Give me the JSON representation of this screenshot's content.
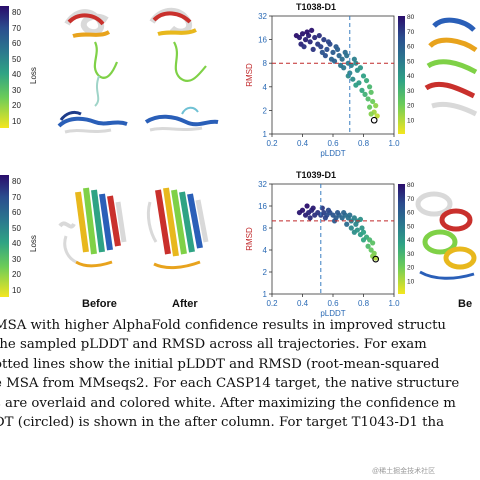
{
  "colorbar": {
    "label": "Loss",
    "ticks": [
      "80",
      "70",
      "60",
      "50",
      "40",
      "30",
      "20",
      "10"
    ]
  },
  "panels": {
    "top_title": "T1038-D1",
    "bottom_title": "T1039-D1",
    "xlabel": "pLDDT",
    "ylabel": "RMSD",
    "x_ticks": [
      "0.2",
      "0.4",
      "0.6",
      "0.8",
      "1.0"
    ],
    "y_ticks": [
      "32",
      "16",
      "8",
      "4",
      "2",
      "1"
    ]
  },
  "labels": {
    "before": "Before",
    "after": "After",
    "right_partial": "Be"
  },
  "caption_lines": [
    "MSA with higher AlphaFold confidence results in improved structu",
    " the sampled pLDDT and RMSD across all trajectories.  For exam",
    "otted lines show the initial pLDDT and RMSD (root-mean-squared",
    "e MSA from MMseqs2. For each CASP14 target, the native structure",
    "s are overlaid and colored white.  After maximizing the confidence m",
    "DT (circled) is shown in the after column.  For target T1043-D1 tha"
  ],
  "watermark": "@稀土掘金技术社区",
  "chart_data": [
    {
      "type": "scatter",
      "title": "T1038-D1",
      "xlabel": "pLDDT",
      "ylabel": "RMSD",
      "xlim": [
        0.2,
        1.0
      ],
      "ylim": [
        1,
        32
      ],
      "y_scale": "log2",
      "colorbar": {
        "label": "Loss",
        "range": [
          0,
          80
        ]
      },
      "initial_pLDDT": 0.71,
      "initial_RMSD": 8,
      "circled_point": {
        "x": 0.87,
        "y": 1.5
      },
      "points": [
        [
          0.36,
          18,
          80
        ],
        [
          0.38,
          17,
          78
        ],
        [
          0.4,
          19,
          79
        ],
        [
          0.42,
          16,
          76
        ],
        [
          0.44,
          18,
          77
        ],
        [
          0.39,
          14,
          75
        ],
        [
          0.45,
          15,
          74
        ],
        [
          0.48,
          17,
          74
        ],
        [
          0.5,
          14,
          70
        ],
        [
          0.47,
          12,
          71
        ],
        [
          0.52,
          13,
          68
        ],
        [
          0.54,
          16,
          69
        ],
        [
          0.56,
          12,
          65
        ],
        [
          0.58,
          14,
          66
        ],
        [
          0.55,
          10,
          64
        ],
        [
          0.6,
          11,
          60
        ],
        [
          0.62,
          13,
          61
        ],
        [
          0.64,
          10,
          57
        ],
        [
          0.61,
          8.5,
          58
        ],
        [
          0.66,
          9,
          54
        ],
        [
          0.68,
          11,
          55
        ],
        [
          0.7,
          8,
          50
        ],
        [
          0.67,
          7,
          51
        ],
        [
          0.72,
          7.5,
          47
        ],
        [
          0.74,
          9,
          48
        ],
        [
          0.71,
          6,
          46
        ],
        [
          0.76,
          6.5,
          42
        ],
        [
          0.78,
          7,
          40
        ],
        [
          0.73,
          5,
          43
        ],
        [
          0.8,
          5.5,
          36
        ],
        [
          0.77,
          4.5,
          38
        ],
        [
          0.82,
          4.8,
          32
        ],
        [
          0.84,
          4,
          28
        ],
        [
          0.79,
          3.6,
          33
        ],
        [
          0.81,
          3.2,
          30
        ],
        [
          0.85,
          3.4,
          24
        ],
        [
          0.83,
          2.8,
          26
        ],
        [
          0.86,
          2.6,
          20
        ],
        [
          0.84,
          2.2,
          22
        ],
        [
          0.88,
          2.3,
          15
        ],
        [
          0.87,
          1.9,
          12
        ],
        [
          0.85,
          1.8,
          16
        ],
        [
          0.89,
          1.7,
          8
        ],
        [
          0.43,
          20,
          80
        ],
        [
          0.46,
          21,
          79
        ],
        [
          0.51,
          18,
          73
        ],
        [
          0.57,
          15,
          67
        ],
        [
          0.63,
          12,
          59
        ],
        [
          0.69,
          10,
          53
        ],
        [
          0.75,
          8,
          45
        ],
        [
          0.41,
          13,
          72
        ],
        [
          0.53,
          11,
          63
        ],
        [
          0.59,
          9,
          58
        ],
        [
          0.65,
          7.5,
          52
        ],
        [
          0.7,
          5.5,
          44
        ],
        [
          0.75,
          4.2,
          37
        ]
      ]
    },
    {
      "type": "scatter",
      "title": "T1039-D1",
      "xlabel": "pLDDT",
      "ylabel": "RMSD",
      "xlim": [
        0.2,
        1.0
      ],
      "ylim": [
        1,
        32
      ],
      "y_scale": "log2",
      "colorbar": {
        "label": "Loss",
        "range": [
          0,
          80
        ]
      },
      "initial_pLDDT": 0.52,
      "initial_RMSD": 10,
      "circled_point": {
        "x": 0.88,
        "y": 3
      },
      "points": [
        [
          0.38,
          13,
          78
        ],
        [
          0.4,
          14,
          79
        ],
        [
          0.42,
          12,
          76
        ],
        [
          0.44,
          13,
          75
        ],
        [
          0.46,
          14,
          74
        ],
        [
          0.48,
          12,
          72
        ],
        [
          0.5,
          13,
          71
        ],
        [
          0.52,
          12,
          69
        ],
        [
          0.54,
          13,
          68
        ],
        [
          0.56,
          12,
          65
        ],
        [
          0.58,
          13,
          64
        ],
        [
          0.6,
          12,
          62
        ],
        [
          0.62,
          11,
          60
        ],
        [
          0.64,
          12,
          58
        ],
        [
          0.66,
          11,
          56
        ],
        [
          0.68,
          12,
          54
        ],
        [
          0.7,
          11,
          52
        ],
        [
          0.72,
          10,
          49
        ],
        [
          0.74,
          11,
          47
        ],
        [
          0.76,
          10,
          44
        ],
        [
          0.78,
          10.5,
          42
        ],
        [
          0.72,
          8,
          45
        ],
        [
          0.74,
          7,
          43
        ],
        [
          0.76,
          7.5,
          40
        ],
        [
          0.78,
          6.5,
          38
        ],
        [
          0.8,
          7,
          35
        ],
        [
          0.82,
          6,
          32
        ],
        [
          0.8,
          5.5,
          34
        ],
        [
          0.84,
          5.5,
          28
        ],
        [
          0.86,
          5,
          24
        ],
        [
          0.83,
          4.5,
          27
        ],
        [
          0.85,
          4,
          22
        ],
        [
          0.87,
          3.6,
          18
        ],
        [
          0.86,
          3.3,
          16
        ],
        [
          0.88,
          3.1,
          10
        ],
        [
          0.43,
          16,
          80
        ],
        [
          0.47,
          15,
          77
        ],
        [
          0.53,
          15,
          70
        ],
        [
          0.57,
          14,
          66
        ],
        [
          0.63,
          13,
          61
        ],
        [
          0.67,
          13,
          57
        ],
        [
          0.71,
          12,
          53
        ],
        [
          0.45,
          11,
          73
        ],
        [
          0.55,
          11,
          67
        ],
        [
          0.61,
          10,
          61
        ],
        [
          0.69,
          9,
          55
        ],
        [
          0.75,
          9,
          46
        ],
        [
          0.79,
          8,
          40
        ]
      ]
    }
  ]
}
